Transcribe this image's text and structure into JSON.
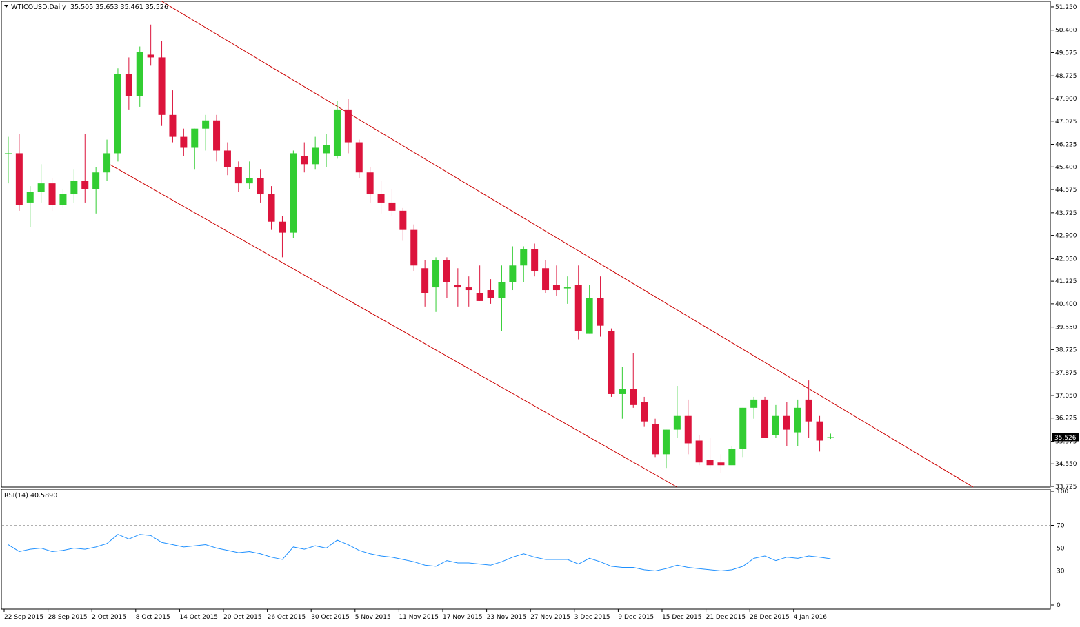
{
  "header": {
    "symbol": "WTICOUSD,Daily",
    "ohlc": "35.505 35.653 35.461 35.526"
  },
  "rsi_header": "RSI(14) 40.5890",
  "chart_data": [
    {
      "type": "candlestick",
      "title": "WTICOUSD,Daily",
      "price_axis_ticks": [
        "51.250",
        "50.400",
        "49.575",
        "48.725",
        "47.900",
        "47.075",
        "46.225",
        "45.400",
        "44.575",
        "43.725",
        "42.900",
        "42.050",
        "41.225",
        "40.400",
        "39.550",
        "38.725",
        "37.875",
        "37.050",
        "36.225",
        "35.375",
        "34.550",
        "33.725"
      ],
      "ylim": [
        33.7,
        51.45
      ],
      "current_price_label": "35.526",
      "date_ticks": [
        "22 Sep 2015",
        "28 Sep 2015",
        "2 Oct 2015",
        "8 Oct 2015",
        "14 Oct 2015",
        "20 Oct 2015",
        "26 Oct 2015",
        "30 Oct 2015",
        "5 Nov 2015",
        "11 Nov 2015",
        "17 Nov 2015",
        "23 Nov 2015",
        "27 Nov 2015",
        "3 Dec 2015",
        "9 Dec 2015",
        "15 Dec 2015",
        "21 Dec 2015",
        "28 Dec 2015",
        "4 Jan 2016"
      ],
      "grid": false,
      "colors": {
        "up": "#32cd32",
        "down": "#dc143c",
        "channel": "#cc0000"
      },
      "channel_lines": [
        {
          "start": {
            "bar": 14.5,
            "price": 51.45
          },
          "end": {
            "bar": 88.5,
            "price": 33.7
          }
        },
        {
          "start": {
            "bar": 9.5,
            "price": 45.55
          },
          "end": {
            "bar": 61.5,
            "price": 33.7
          }
        }
      ],
      "candles": [
        {
          "o": 45.9,
          "h": 46.5,
          "l": 44.8,
          "c": 45.9
        },
        {
          "o": 45.9,
          "h": 46.6,
          "l": 43.8,
          "c": 44.0
        },
        {
          "o": 44.1,
          "h": 44.7,
          "l": 43.2,
          "c": 44.5
        },
        {
          "o": 44.5,
          "h": 45.5,
          "l": 44.1,
          "c": 44.8
        },
        {
          "o": 44.8,
          "h": 45.0,
          "l": 43.8,
          "c": 44.0
        },
        {
          "o": 44.0,
          "h": 44.6,
          "l": 43.9,
          "c": 44.4
        },
        {
          "o": 44.4,
          "h": 45.3,
          "l": 44.1,
          "c": 44.9
        },
        {
          "o": 44.9,
          "h": 46.6,
          "l": 44.1,
          "c": 44.6
        },
        {
          "o": 44.6,
          "h": 45.4,
          "l": 43.7,
          "c": 45.2
        },
        {
          "o": 45.2,
          "h": 46.4,
          "l": 44.9,
          "c": 45.9
        },
        {
          "o": 45.9,
          "h": 49.0,
          "l": 45.6,
          "c": 48.8
        },
        {
          "o": 48.8,
          "h": 49.4,
          "l": 47.5,
          "c": 48.0
        },
        {
          "o": 48.0,
          "h": 49.8,
          "l": 47.6,
          "c": 49.6
        },
        {
          "o": 49.5,
          "h": 50.6,
          "l": 49.1,
          "c": 49.4
        },
        {
          "o": 49.4,
          "h": 50.0,
          "l": 46.9,
          "c": 47.3
        },
        {
          "o": 47.3,
          "h": 48.2,
          "l": 46.3,
          "c": 46.5
        },
        {
          "o": 46.5,
          "h": 46.8,
          "l": 45.8,
          "c": 46.1
        },
        {
          "o": 46.1,
          "h": 46.8,
          "l": 45.3,
          "c": 46.8
        },
        {
          "o": 46.8,
          "h": 47.3,
          "l": 46.0,
          "c": 47.1
        },
        {
          "o": 47.1,
          "h": 47.3,
          "l": 45.6,
          "c": 46.0
        },
        {
          "o": 46.0,
          "h": 46.3,
          "l": 45.1,
          "c": 45.4
        },
        {
          "o": 45.4,
          "h": 45.6,
          "l": 44.5,
          "c": 44.8
        },
        {
          "o": 44.8,
          "h": 45.6,
          "l": 44.6,
          "c": 45.0
        },
        {
          "o": 45.0,
          "h": 45.3,
          "l": 44.1,
          "c": 44.4
        },
        {
          "o": 44.4,
          "h": 44.7,
          "l": 43.1,
          "c": 43.4
        },
        {
          "o": 43.4,
          "h": 43.6,
          "l": 42.1,
          "c": 43.0
        },
        {
          "o": 43.0,
          "h": 46.0,
          "l": 42.8,
          "c": 45.9
        },
        {
          "o": 45.8,
          "h": 46.3,
          "l": 45.2,
          "c": 45.5
        },
        {
          "o": 45.5,
          "h": 46.5,
          "l": 45.3,
          "c": 46.1
        },
        {
          "o": 45.9,
          "h": 46.6,
          "l": 45.4,
          "c": 46.2
        },
        {
          "o": 45.8,
          "h": 47.8,
          "l": 45.7,
          "c": 47.5
        },
        {
          "o": 47.5,
          "h": 47.9,
          "l": 45.9,
          "c": 46.3
        },
        {
          "o": 46.3,
          "h": 46.4,
          "l": 45.0,
          "c": 45.2
        },
        {
          "o": 45.2,
          "h": 45.4,
          "l": 44.1,
          "c": 44.4
        },
        {
          "o": 44.4,
          "h": 44.9,
          "l": 43.7,
          "c": 44.1
        },
        {
          "o": 44.1,
          "h": 44.6,
          "l": 43.6,
          "c": 43.8
        },
        {
          "o": 43.8,
          "h": 43.9,
          "l": 42.7,
          "c": 43.1
        },
        {
          "o": 43.1,
          "h": 43.3,
          "l": 41.6,
          "c": 41.8
        },
        {
          "o": 41.7,
          "h": 42.0,
          "l": 40.3,
          "c": 40.8
        },
        {
          "o": 41.0,
          "h": 42.1,
          "l": 40.1,
          "c": 42.0
        },
        {
          "o": 42.0,
          "h": 42.1,
          "l": 40.6,
          "c": 41.2
        },
        {
          "o": 41.1,
          "h": 41.7,
          "l": 40.3,
          "c": 41.0
        },
        {
          "o": 41.0,
          "h": 41.4,
          "l": 40.3,
          "c": 40.9
        },
        {
          "o": 40.8,
          "h": 41.8,
          "l": 40.5,
          "c": 40.5
        },
        {
          "o": 40.9,
          "h": 41.3,
          "l": 40.4,
          "c": 40.6
        },
        {
          "o": 40.6,
          "h": 41.8,
          "l": 39.4,
          "c": 41.2
        },
        {
          "o": 41.2,
          "h": 42.5,
          "l": 40.9,
          "c": 41.8
        },
        {
          "o": 41.8,
          "h": 42.5,
          "l": 41.2,
          "c": 42.4
        },
        {
          "o": 42.4,
          "h": 42.6,
          "l": 41.4,
          "c": 41.6
        },
        {
          "o": 41.7,
          "h": 42.0,
          "l": 40.8,
          "c": 40.9
        },
        {
          "o": 41.1,
          "h": 41.8,
          "l": 40.7,
          "c": 40.9
        },
        {
          "o": 41.0,
          "h": 41.4,
          "l": 40.4,
          "c": 41.0
        },
        {
          "o": 41.1,
          "h": 41.8,
          "l": 39.1,
          "c": 39.4
        },
        {
          "o": 39.3,
          "h": 41.1,
          "l": 39.3,
          "c": 40.6
        },
        {
          "o": 40.6,
          "h": 41.4,
          "l": 39.2,
          "c": 39.6
        },
        {
          "o": 39.4,
          "h": 39.5,
          "l": 37.0,
          "c": 37.1
        },
        {
          "o": 37.1,
          "h": 38.1,
          "l": 36.2,
          "c": 37.3
        },
        {
          "o": 37.3,
          "h": 38.6,
          "l": 36.6,
          "c": 36.7
        },
        {
          "o": 36.8,
          "h": 37.0,
          "l": 35.9,
          "c": 36.1
        },
        {
          "o": 36.0,
          "h": 36.2,
          "l": 34.8,
          "c": 34.9
        },
        {
          "o": 34.9,
          "h": 35.8,
          "l": 34.4,
          "c": 35.8
        },
        {
          "o": 35.8,
          "h": 37.4,
          "l": 35.5,
          "c": 36.3
        },
        {
          "o": 36.3,
          "h": 36.9,
          "l": 34.9,
          "c": 35.3
        },
        {
          "o": 35.4,
          "h": 35.6,
          "l": 34.5,
          "c": 34.6
        },
        {
          "o": 34.7,
          "h": 35.5,
          "l": 34.4,
          "c": 34.5
        },
        {
          "o": 34.6,
          "h": 34.9,
          "l": 34.2,
          "c": 34.5
        },
        {
          "o": 34.5,
          "h": 35.2,
          "l": 34.5,
          "c": 35.1
        },
        {
          "o": 35.1,
          "h": 36.6,
          "l": 34.8,
          "c": 36.6
        },
        {
          "o": 36.6,
          "h": 37.0,
          "l": 36.2,
          "c": 36.9
        },
        {
          "o": 36.9,
          "h": 37.0,
          "l": 35.5,
          "c": 35.5
        },
        {
          "o": 35.6,
          "h": 36.7,
          "l": 35.5,
          "c": 36.3
        },
        {
          "o": 36.3,
          "h": 36.8,
          "l": 35.2,
          "c": 35.8
        },
        {
          "o": 35.7,
          "h": 36.9,
          "l": 35.2,
          "c": 36.6
        },
        {
          "o": 36.9,
          "h": 37.6,
          "l": 35.5,
          "c": 36.1
        },
        {
          "o": 36.1,
          "h": 36.3,
          "l": 35.0,
          "c": 35.4
        },
        {
          "o": 35.505,
          "h": 35.653,
          "l": 35.461,
          "c": 35.526
        }
      ]
    },
    {
      "type": "line",
      "title": "RSI(14) 40.5890",
      "ylim": [
        0,
        100
      ],
      "y_ticks": [
        100,
        70,
        50,
        30,
        0
      ],
      "levels": [
        70,
        50,
        30
      ],
      "series": [
        {
          "color": "#1e90ff",
          "values": [
            53,
            47,
            49,
            50,
            47,
            48,
            50,
            49,
            51,
            54,
            62,
            58,
            62,
            61,
            55,
            53,
            51,
            52,
            53,
            50,
            48,
            46,
            47,
            45,
            42,
            40,
            51,
            49,
            52,
            50,
            57,
            53,
            48,
            45,
            43,
            42,
            40,
            38,
            35,
            34,
            39,
            37,
            37,
            36,
            35,
            38,
            42,
            45,
            42,
            40,
            40,
            40,
            36,
            41,
            38,
            34,
            33,
            33,
            31,
            30,
            32,
            35,
            33,
            32,
            31,
            30,
            31,
            34,
            41,
            43,
            39,
            42,
            41,
            43,
            42,
            40.589
          ]
        }
      ]
    }
  ]
}
